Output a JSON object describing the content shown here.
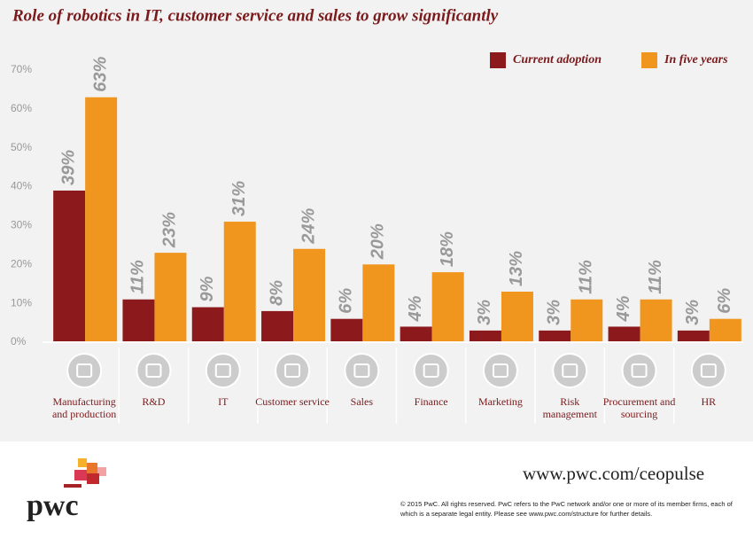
{
  "chart_data": {
    "type": "bar",
    "title": "Role of robotics in IT, customer service and sales to grow significantly",
    "categories": [
      "Manufacturing and production",
      "R&D",
      "IT",
      "Customer service",
      "Sales",
      "Finance",
      "Marketing",
      "Risk management",
      "Procurement and sourcing",
      "HR"
    ],
    "series": [
      {
        "name": "Current adoption",
        "color": "#8c1a1c",
        "values": [
          39,
          11,
          9,
          8,
          6,
          4,
          3,
          3,
          4,
          3
        ],
        "value_labels": [
          "39%",
          "11%",
          "9%",
          "8%",
          "6%",
          "4%",
          "3%",
          "3%",
          "4%",
          "3%"
        ]
      },
      {
        "name": "In five years",
        "color": "#f0961e",
        "values": [
          63,
          23,
          31,
          24,
          20,
          18,
          13,
          11,
          11,
          6
        ],
        "value_labels": [
          "63%",
          "23%",
          "31%",
          "24%",
          "20%",
          "18%",
          "13%",
          "11%",
          "11%",
          "6%"
        ]
      }
    ],
    "ylim": [
      0,
      70
    ],
    "yticks": [
      {
        "value": 0,
        "label": "0%"
      },
      {
        "value": 10,
        "label": "10%"
      },
      {
        "value": 20,
        "label": "20%"
      },
      {
        "value": 30,
        "label": "30%"
      },
      {
        "value": 40,
        "label": "40%"
      },
      {
        "value": 50,
        "label": "50%"
      },
      {
        "value": 60,
        "label": "60%"
      },
      {
        "value": 70,
        "label": "70%"
      }
    ],
    "grid": false,
    "legend": "upper right"
  },
  "footer": {
    "logo": "pwc",
    "url": "www.pwc.com/ceopulse",
    "copyright": "© 2015 PwC. All rights reserved. PwC refers to the PwC network and/or one or more of its member firms, each of which is a separate legal entity. Please see www.pwc.com/structure for further details."
  }
}
